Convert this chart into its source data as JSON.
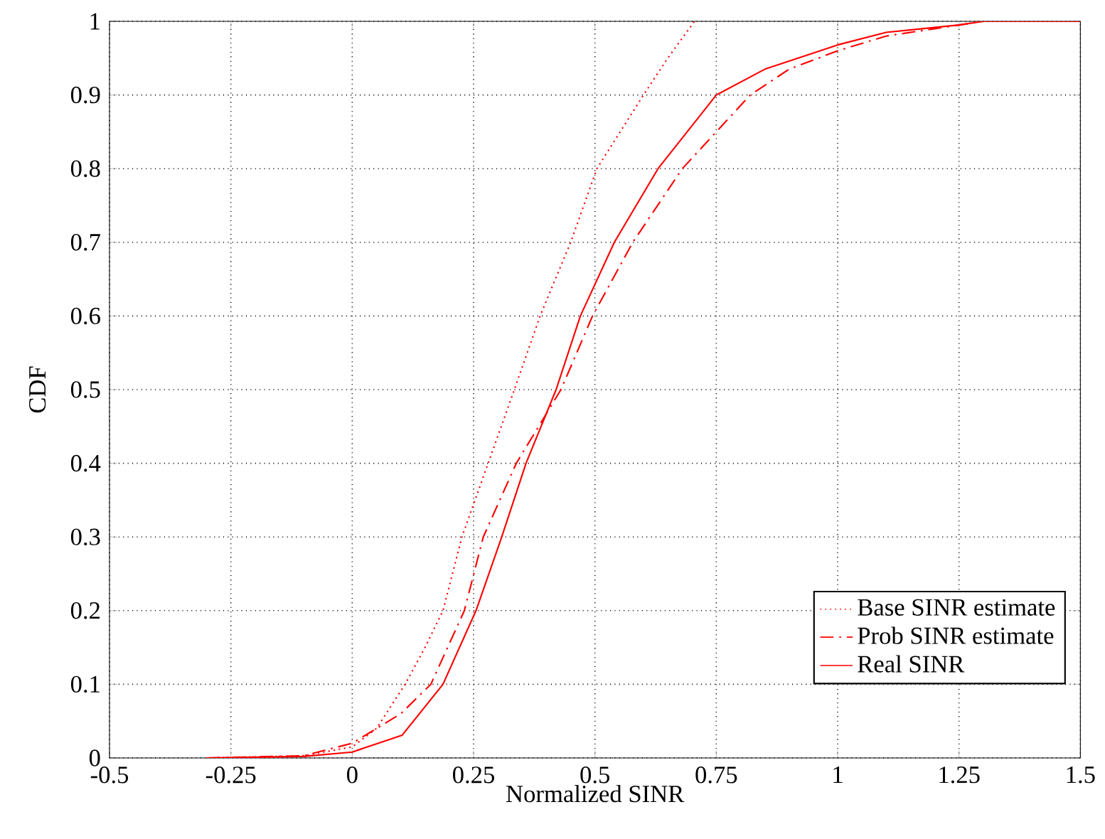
{
  "chart_data": {
    "type": "line",
    "xlabel": "Normalized SINR",
    "ylabel": "CDF",
    "xlim": [
      -0.5,
      1.5
    ],
    "ylim": [
      0,
      1
    ],
    "xticks": [
      -0.5,
      -0.25,
      0,
      0.25,
      0.5,
      0.75,
      1,
      1.25,
      1.5
    ],
    "yticks": [
      0,
      0.1,
      0.2,
      0.3,
      0.4,
      0.5,
      0.6,
      0.7,
      0.8,
      0.9,
      1
    ],
    "grid": true,
    "legend": "bottom right",
    "series": [
      {
        "name": "Base SINR estimate",
        "color": "#ff0000",
        "line_style": "dotted",
        "x": [
          -0.3,
          -0.1,
          0,
          0.05,
          0.109,
          0.15,
          0.187,
          0.226,
          0.28,
          0.334,
          0.387,
          0.45,
          0.504,
          0.6,
          0.65,
          0.705
        ],
        "values": [
          0,
          0.003,
          0.015,
          0.04,
          0.1,
          0.15,
          0.2,
          0.3,
          0.4,
          0.5,
          0.6,
          0.7,
          0.8,
          0.9,
          0.95,
          1.0
        ]
      },
      {
        "name": "Prob SINR estimate",
        "color": "#ff0000",
        "line_style": "dashdot",
        "x": [
          -0.3,
          -0.1,
          0,
          0.1,
          0.162,
          0.231,
          0.27,
          0.338,
          0.43,
          0.495,
          0.578,
          0.68,
          0.82,
          0.9,
          1.0,
          1.1,
          1.2,
          1.3,
          1.5
        ],
        "values": [
          0,
          0.003,
          0.02,
          0.06,
          0.1,
          0.2,
          0.3,
          0.4,
          0.5,
          0.6,
          0.7,
          0.8,
          0.9,
          0.935,
          0.96,
          0.98,
          0.99,
          1,
          1
        ]
      },
      {
        "name": "Real SINR",
        "color": "#ff0000",
        "line_style": "solid",
        "x": [
          -0.3,
          -0.1,
          0,
          0.103,
          0.187,
          0.255,
          0.308,
          0.358,
          0.42,
          0.47,
          0.54,
          0.63,
          0.75,
          0.85,
          1.0,
          1.1,
          1.25,
          1.3,
          1.5
        ],
        "values": [
          0,
          0.002,
          0.008,
          0.031,
          0.1,
          0.2,
          0.3,
          0.4,
          0.5,
          0.6,
          0.7,
          0.8,
          0.9,
          0.935,
          0.968,
          0.985,
          0.995,
          1,
          1
        ]
      }
    ]
  }
}
